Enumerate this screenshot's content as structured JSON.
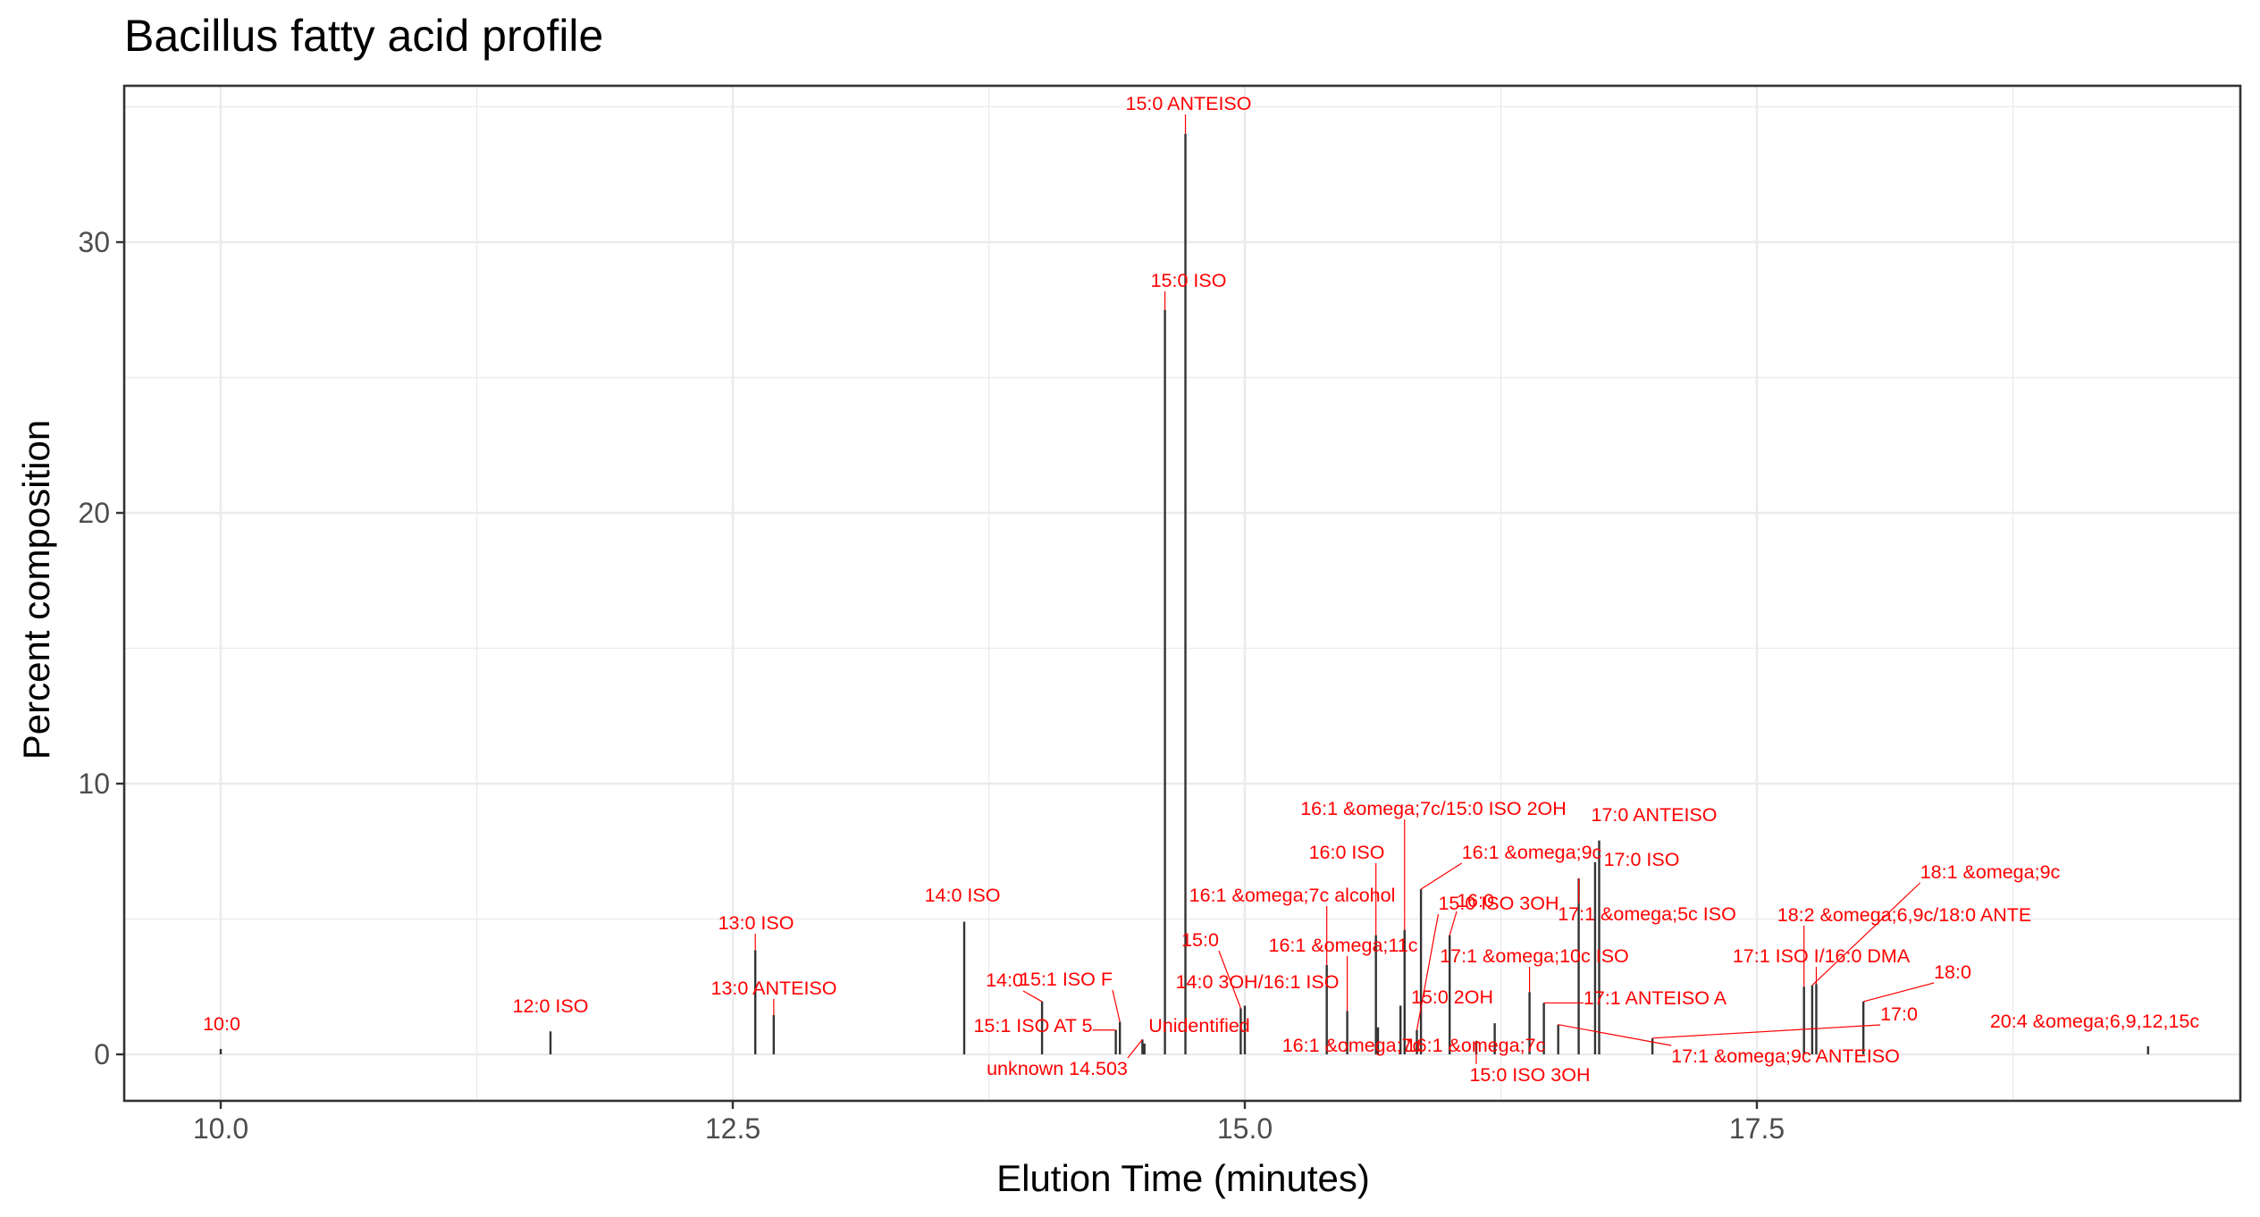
{
  "chart_data": {
    "type": "bar",
    "title": "Bacillus fatty acid profile",
    "xlabel": "Elution Time (minutes)",
    "ylabel": "Percent composition",
    "xlim": [
      9.53,
      19.88
    ],
    "ylim": [
      -1.7,
      35.8
    ],
    "x_ticks": [
      10.0,
      12.5,
      15.0,
      17.5
    ],
    "y_ticks": [
      0,
      10,
      20,
      30
    ],
    "x_tick_labels": [
      "10.0",
      "12.5",
      "15.0",
      "17.5"
    ],
    "y_tick_labels": [
      "0",
      "10",
      "20",
      "30"
    ],
    "grid": true,
    "legend": "none",
    "peaks": [
      {
        "label": "10:0",
        "x": 10.0,
        "y": 0.2
      },
      {
        "label": "12:0 ISO",
        "x": 11.61,
        "y": 0.85
      },
      {
        "label": "13:0 ISO",
        "x": 12.61,
        "y": 3.85
      },
      {
        "label": "13:0 ANTEISO",
        "x": 12.7,
        "y": 1.45
      },
      {
        "label": "14:0 ISO",
        "x": 13.63,
        "y": 4.9
      },
      {
        "label": "14:0",
        "x": 14.01,
        "y": 1.95
      },
      {
        "label": "15:1 ISO AT 5",
        "x": 14.37,
        "y": 0.9
      },
      {
        "label": "15:1 ISO F",
        "x": 14.39,
        "y": 1.2
      },
      {
        "label": "unknown 14.503",
        "x": 14.5,
        "y": 0.55
      },
      {
        "label": "Unidentified",
        "x": 14.51,
        "y": 0.4
      },
      {
        "label": "15:0 ISO",
        "x": 14.61,
        "y": 27.5
      },
      {
        "label": "15:0 ANTEISO",
        "x": 14.71,
        "y": 34.0
      },
      {
        "label": "15:0",
        "x": 14.98,
        "y": 1.7
      },
      {
        "label": "14:0 3OH/16:1 ISO",
        "x": 15.0,
        "y": 1.8
      },
      {
        "label": "16:1 &omega;7c alcohol",
        "x": 15.4,
        "y": 3.3
      },
      {
        "label": "16:1 &omega;11c",
        "x": 15.5,
        "y": 1.6
      },
      {
        "label": "16:1 &omega;7c",
        "x": 15.65,
        "y": 1.0
      },
      {
        "label": "16:0 ISO",
        "x": 15.64,
        "y": 4.4
      },
      {
        "label": "15:0 2OH",
        "x": 15.76,
        "y": 1.8
      },
      {
        "label": "16:1 &omega;7c/15:0 ISO 2OH",
        "x": 15.78,
        "y": 4.6
      },
      {
        "label": "16:1 &omega;9c",
        "x": 15.86,
        "y": 6.1
      },
      {
        "label": "15:0 ISO 3OH",
        "x": 15.84,
        "y": 0.9
      },
      {
        "label": "16:0",
        "x": 16.0,
        "y": 4.4
      },
      {
        "label": "15:0 ISO 3OH",
        "x": 16.13,
        "y": 0.5
      },
      {
        "label": "16:1 &omega;7c",
        "x": 16.22,
        "y": 1.15
      },
      {
        "label": "17:1 &omega;10c ISO",
        "x": 16.39,
        "y": 2.3
      },
      {
        "label": "17:1 ANTEISO A",
        "x": 16.46,
        "y": 1.9
      },
      {
        "label": "17:1 &omega;9c ANTEISO",
        "x": 16.53,
        "y": 1.1
      },
      {
        "label": "17:1 &omega;5c ISO",
        "x": 16.63,
        "y": 6.5
      },
      {
        "label": "17:0 ISO",
        "x": 16.71,
        "y": 7.1
      },
      {
        "label": "17:0 ANTEISO",
        "x": 16.73,
        "y": 7.9
      },
      {
        "label": "17:0",
        "x": 16.99,
        "y": 0.6
      },
      {
        "label": "18:2 &omega;6,9c/18:0 ANTE",
        "x": 17.73,
        "y": 2.5
      },
      {
        "label": "17:1 ISO I/16:0 DMA",
        "x": 17.79,
        "y": 2.6
      },
      {
        "label": "18:1 &omega;9c",
        "x": 17.77,
        "y": 2.55
      },
      {
        "label": "18:0",
        "x": 18.02,
        "y": 1.95
      },
      {
        "label": "20:4 &omega;6,9,12,15c",
        "x": 19.41,
        "y": 0.3
      }
    ]
  }
}
